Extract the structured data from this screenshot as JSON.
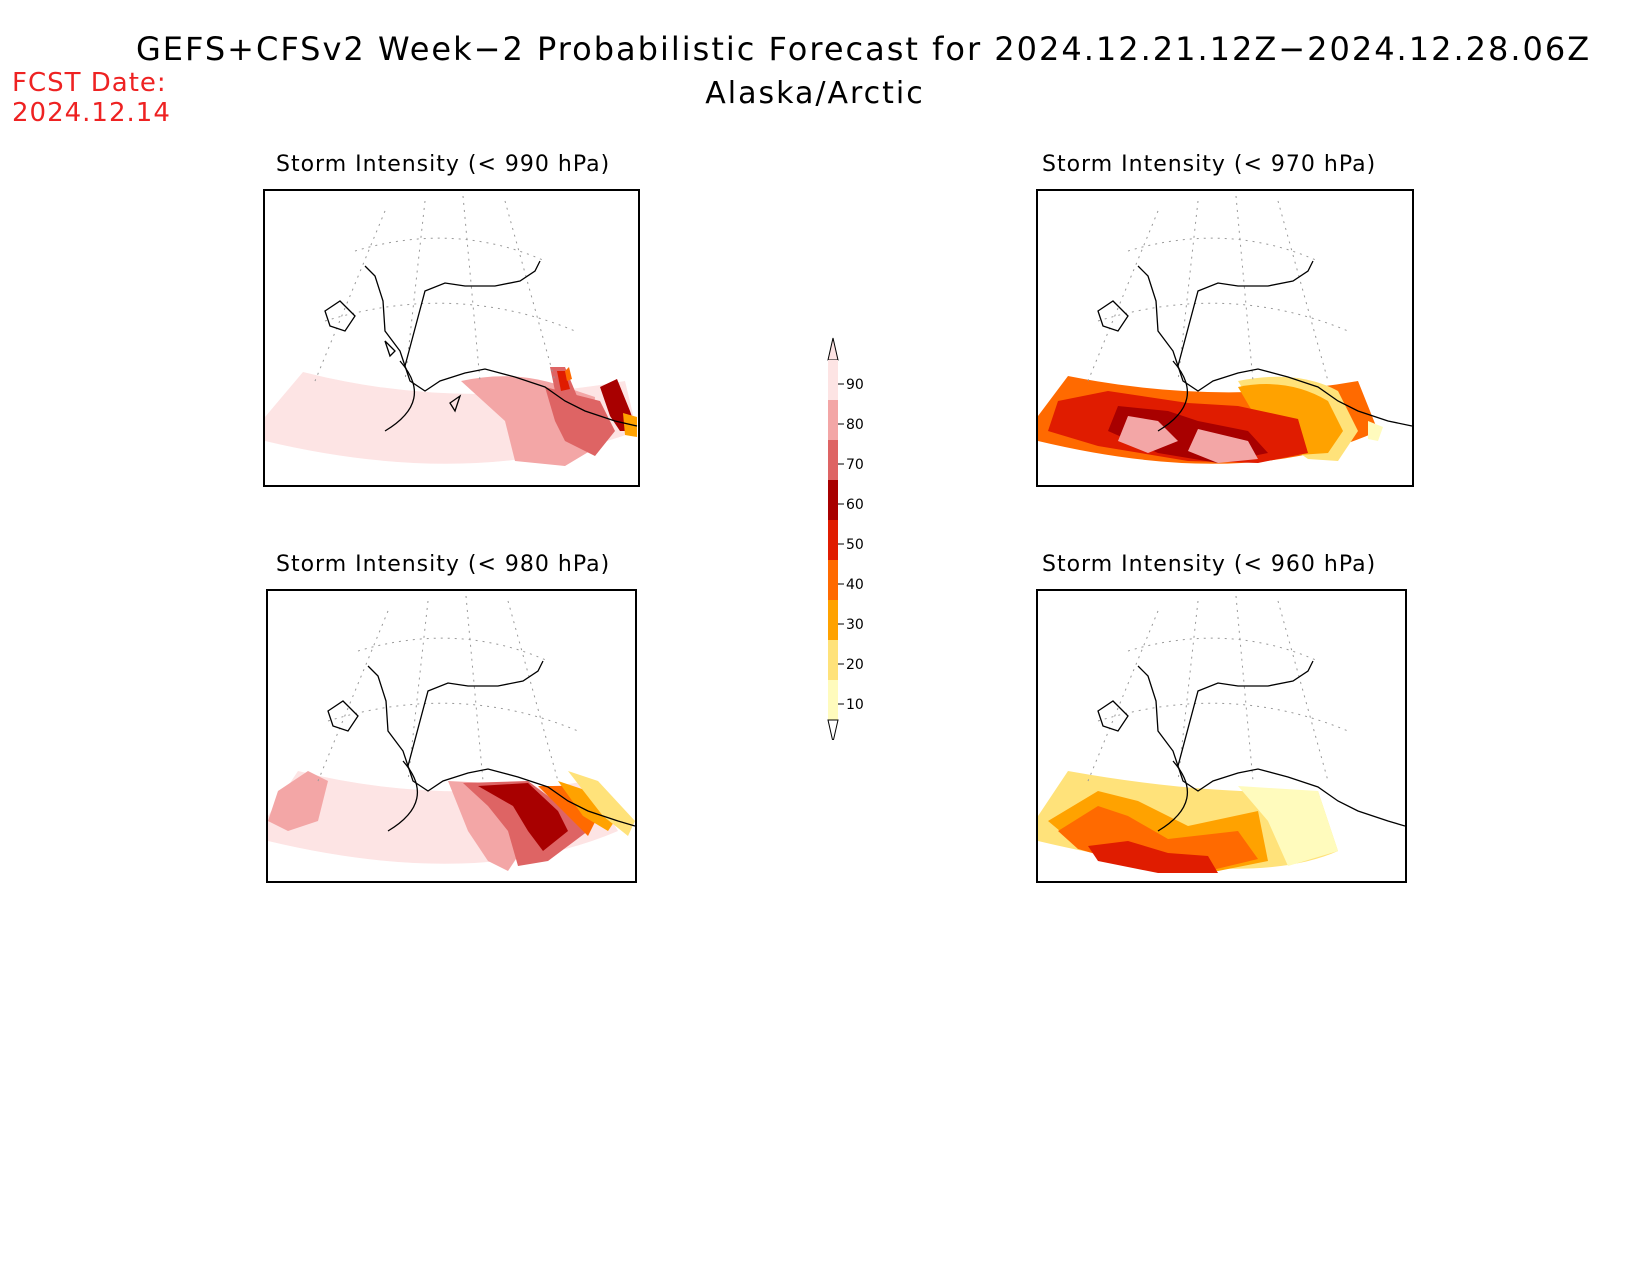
{
  "header": {
    "title": "GEFS+CFSv2 Week−2 Probabilistic Forecast for 2024.12.21.12Z−2024.12.28.06Z",
    "region": "Alaska/Arctic"
  },
  "forecast": {
    "label": "FCST Date:",
    "date": "2024.12.14"
  },
  "panels": [
    {
      "id": "p990",
      "title": "Storm Intensity (< 990 hPa)"
    },
    {
      "id": "p970",
      "title": "Storm Intensity (< 970 hPa)"
    },
    {
      "id": "p980",
      "title": "Storm Intensity (< 980 hPa)"
    },
    {
      "id": "p960",
      "title": "Storm Intensity (< 960 hPa)"
    }
  ],
  "legend": {
    "levels": [
      "90",
      "80",
      "70",
      "60",
      "50",
      "40",
      "30",
      "20",
      "10"
    ],
    "colors": [
      "#fde4e4",
      "#f3a6a6",
      "#de6464",
      "#a80000",
      "#e01c00",
      "#ff6a00",
      "#ffa200",
      "#ffe27a",
      "#fffbbd"
    ]
  }
}
